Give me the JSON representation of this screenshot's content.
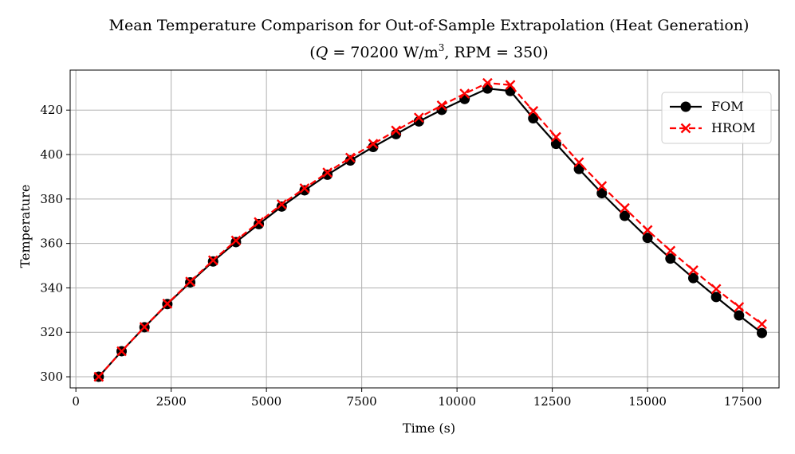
{
  "chart_data": {
    "type": "line",
    "title": "Mean Temperature Comparison for Out-of-Sample Extrapolation (Heat Generation)",
    "subtitle_parts": {
      "open": "(",
      "q_symbol": "Q",
      "q_eq": " = 70200 W/m",
      "q_exp": "3",
      "rpm": ", RPM = 350)"
    },
    "xlabel": "Time (s)",
    "ylabel": "Temperature",
    "xlim": [
      -150,
      18450
    ],
    "ylim": [
      295,
      438
    ],
    "xticks": [
      0,
      2500,
      5000,
      7500,
      10000,
      12500,
      15000,
      17500
    ],
    "yticks": [
      300,
      320,
      340,
      360,
      380,
      400,
      420
    ],
    "grid": true,
    "legend_position": "top-right",
    "x": [
      600,
      1200,
      1800,
      2400,
      3000,
      3600,
      4200,
      4800,
      5400,
      6000,
      6600,
      7200,
      7800,
      8400,
      9000,
      9600,
      10200,
      10800,
      11400,
      12000,
      12600,
      13200,
      13800,
      14400,
      15000,
      15600,
      16200,
      16800,
      17400,
      18000
    ],
    "series": [
      {
        "name": "FOM",
        "color": "#000000",
        "linestyle": "solid",
        "marker": "circle",
        "values": [
          300.0,
          311.5,
          322.3,
          332.7,
          342.5,
          351.9,
          360.6,
          368.7,
          376.6,
          383.9,
          390.9,
          397.3,
          403.4,
          409.2,
          414.9,
          420.1,
          425.0,
          429.7,
          428.6,
          416.3,
          404.8,
          393.5,
          382.6,
          372.4,
          362.5,
          353.2,
          344.4,
          335.9,
          327.6,
          319.7
        ]
      },
      {
        "name": "HROM",
        "color": "#ff0000",
        "linestyle": "dashed",
        "marker": "x",
        "values": [
          300.0,
          311.5,
          322.4,
          332.9,
          342.8,
          352.4,
          361.3,
          369.6,
          377.6,
          384.8,
          391.9,
          398.6,
          404.8,
          410.8,
          416.6,
          422.1,
          427.4,
          432.2,
          431.3,
          419.6,
          407.9,
          396.5,
          385.8,
          375.9,
          366.0,
          356.7,
          347.9,
          339.5,
          331.4,
          323.7
        ]
      }
    ]
  }
}
